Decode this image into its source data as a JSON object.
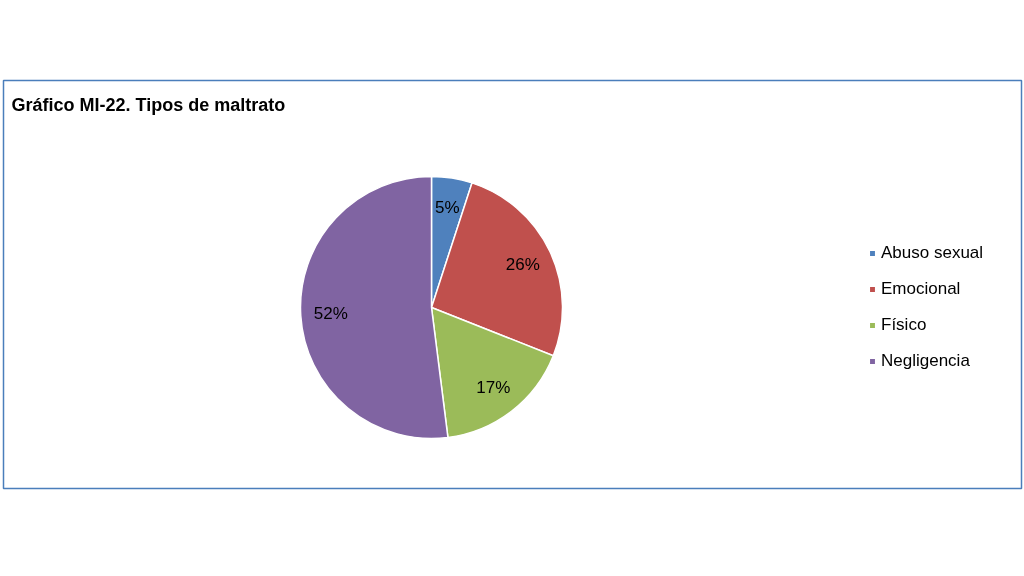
{
  "chart_data": {
    "type": "pie",
    "title": "Gráfico MI-22. Tipos de maltrato",
    "categories": [
      "Abuso sexual",
      "Emocional",
      "Físico",
      "Negligencia"
    ],
    "values": [
      5,
      26,
      17,
      52
    ],
    "value_labels": [
      "5%",
      "26%",
      "17%",
      "52%"
    ],
    "colors": [
      "#4f81bd",
      "#c0504d",
      "#9bbb59",
      "#8064a2"
    ],
    "legend": "right"
  }
}
